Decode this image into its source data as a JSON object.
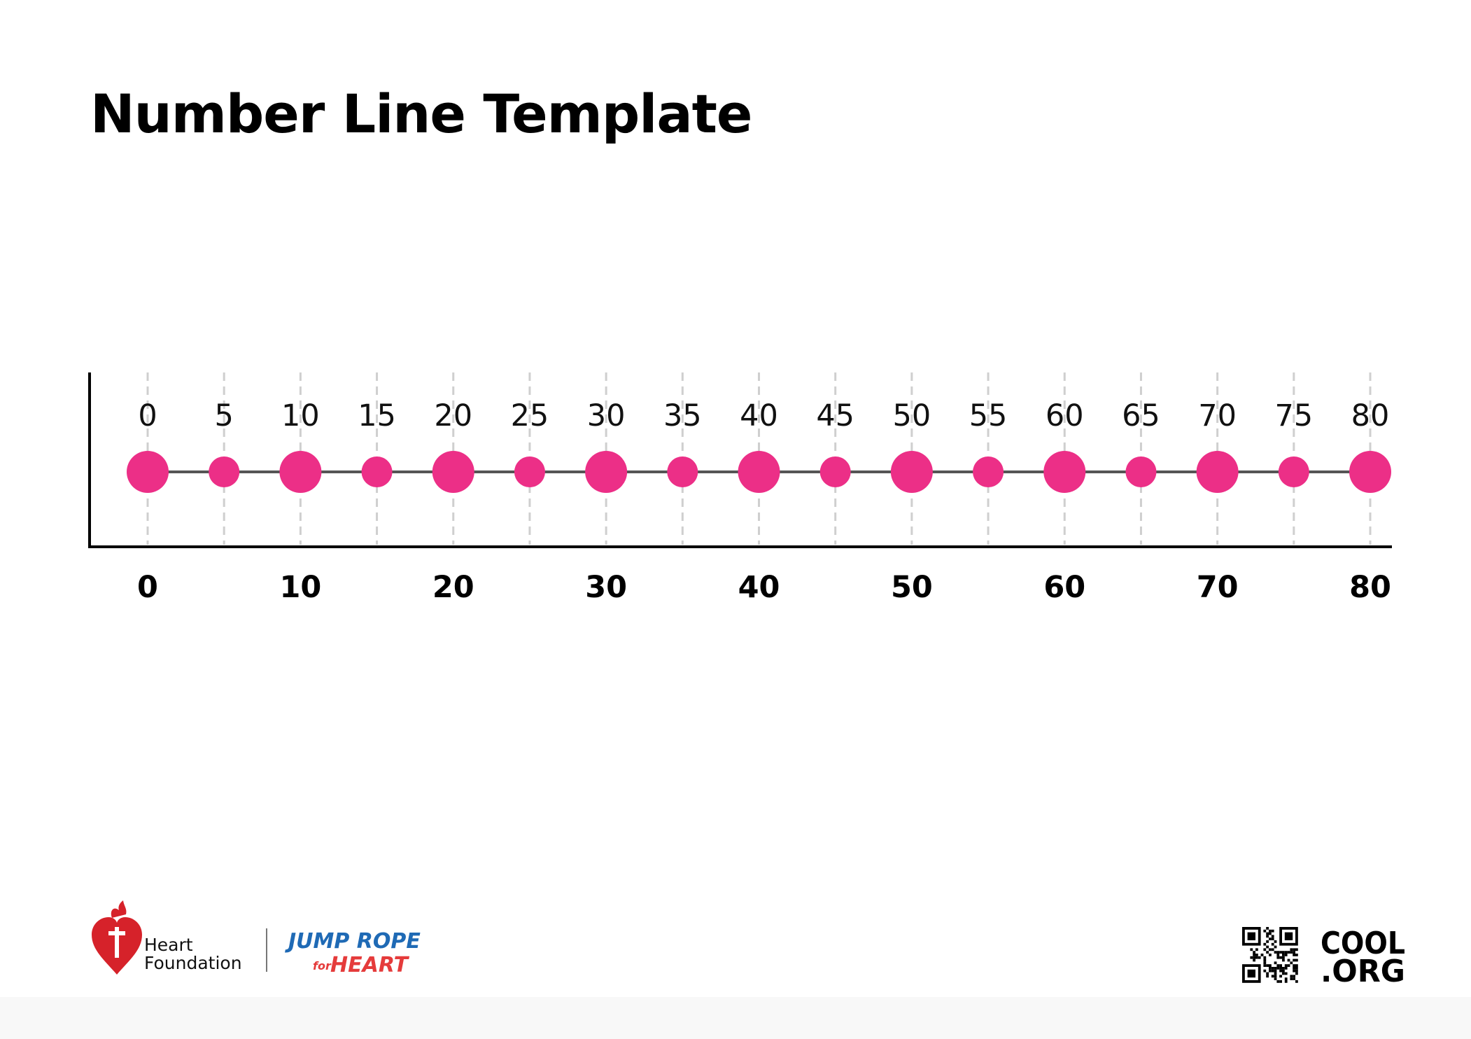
{
  "title": "Number Line Template",
  "chart_data": {
    "type": "scatter",
    "x": [
      0,
      5,
      10,
      15,
      20,
      25,
      30,
      35,
      40,
      45,
      50,
      55,
      60,
      65,
      70,
      75,
      80
    ],
    "minor_labels": [
      "0",
      "5",
      "10",
      "15",
      "20",
      "25",
      "30",
      "35",
      "40",
      "45",
      "50",
      "55",
      "60",
      "65",
      "70",
      "75",
      "80"
    ],
    "major_labels": [
      "0",
      "10",
      "20",
      "30",
      "40",
      "50",
      "60",
      "70",
      "80"
    ],
    "xlim": [
      0,
      80
    ],
    "point_color": "#ec2f87",
    "grid": true
  },
  "footer": {
    "heart_foundation_line1": "Heart",
    "heart_foundation_line2": "Foundation",
    "jump_rope_line1": "JUMP ROPE",
    "jump_rope_for": "for",
    "jump_rope_line2": "HEART",
    "cool_line1": "COOL",
    "cool_line2": ".ORG"
  },
  "colors": {
    "heart_red": "#d6222a",
    "jump_blue": "#1f6ab5",
    "jump_red": "#e53b3b"
  }
}
